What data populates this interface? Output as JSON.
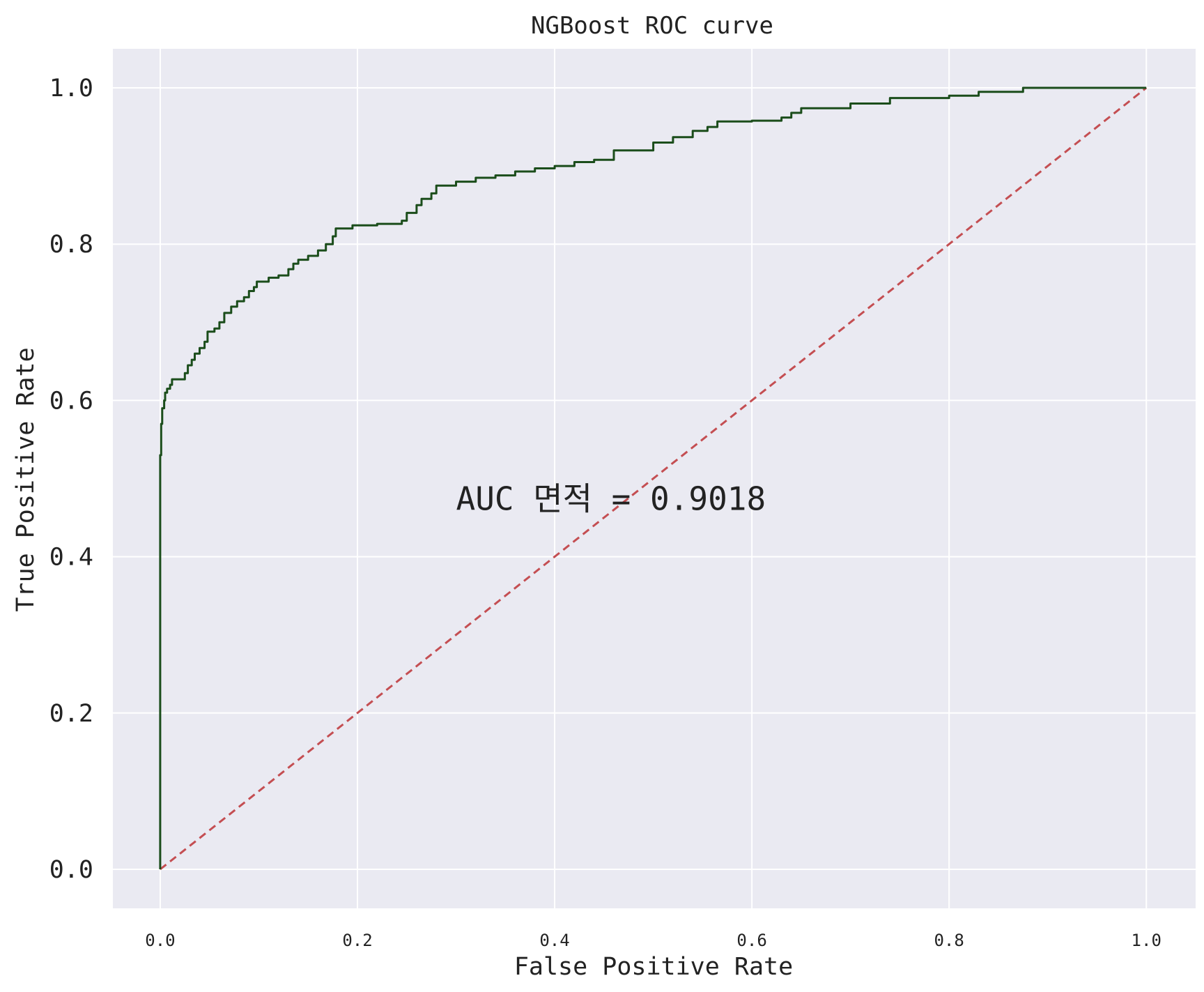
{
  "chart_data": {
    "type": "line",
    "title": "NGBoost ROC curve",
    "xlabel": "False Positive Rate",
    "ylabel": "True Positive Rate",
    "xlim": [
      -0.048,
      1.05
    ],
    "ylim": [
      -0.05,
      1.05
    ],
    "xticks": [
      0.0,
      0.2,
      0.4,
      0.6,
      0.8,
      1.0
    ],
    "xtick_labels": [
      "0.0",
      "0.2",
      "0.4",
      "0.6",
      "0.8",
      "1.0"
    ],
    "yticks": [
      0.0,
      0.2,
      0.4,
      0.6,
      0.8,
      1.0
    ],
    "ytick_labels": [
      "0.0",
      "0.2",
      "0.4",
      "0.6",
      "0.8",
      "1.0"
    ],
    "grid": true,
    "background": "#EAEAF2",
    "annotation": {
      "text": "AUC 면적 = 0.9018",
      "x": 0.3,
      "y": 0.46
    },
    "series": [
      {
        "style": "solid",
        "color": "#1B4D1B",
        "points": [
          [
            0.0,
            0.0
          ],
          [
            0.0,
            0.53
          ],
          [
            0.001,
            0.57
          ],
          [
            0.002,
            0.59
          ],
          [
            0.004,
            0.6
          ],
          [
            0.005,
            0.61
          ],
          [
            0.007,
            0.615
          ],
          [
            0.01,
            0.62
          ],
          [
            0.012,
            0.627
          ],
          [
            0.02,
            0.627
          ],
          [
            0.025,
            0.635
          ],
          [
            0.028,
            0.645
          ],
          [
            0.032,
            0.652
          ],
          [
            0.035,
            0.66
          ],
          [
            0.04,
            0.667
          ],
          [
            0.045,
            0.675
          ],
          [
            0.048,
            0.688
          ],
          [
            0.055,
            0.692
          ],
          [
            0.06,
            0.7
          ],
          [
            0.065,
            0.712
          ],
          [
            0.072,
            0.72
          ],
          [
            0.078,
            0.727
          ],
          [
            0.085,
            0.732
          ],
          [
            0.09,
            0.74
          ],
          [
            0.095,
            0.745
          ],
          [
            0.098,
            0.752
          ],
          [
            0.11,
            0.757
          ],
          [
            0.12,
            0.76
          ],
          [
            0.13,
            0.768
          ],
          [
            0.135,
            0.775
          ],
          [
            0.14,
            0.78
          ],
          [
            0.15,
            0.785
          ],
          [
            0.16,
            0.792
          ],
          [
            0.168,
            0.8
          ],
          [
            0.175,
            0.81
          ],
          [
            0.178,
            0.82
          ],
          [
            0.195,
            0.824
          ],
          [
            0.22,
            0.826
          ],
          [
            0.245,
            0.83
          ],
          [
            0.25,
            0.84
          ],
          [
            0.26,
            0.85
          ],
          [
            0.265,
            0.858
          ],
          [
            0.275,
            0.865
          ],
          [
            0.28,
            0.875
          ],
          [
            0.3,
            0.88
          ],
          [
            0.32,
            0.885
          ],
          [
            0.34,
            0.888
          ],
          [
            0.36,
            0.893
          ],
          [
            0.38,
            0.897
          ],
          [
            0.4,
            0.9
          ],
          [
            0.42,
            0.905
          ],
          [
            0.44,
            0.908
          ],
          [
            0.46,
            0.92
          ],
          [
            0.5,
            0.93
          ],
          [
            0.52,
            0.937
          ],
          [
            0.54,
            0.945
          ],
          [
            0.555,
            0.95
          ],
          [
            0.565,
            0.957
          ],
          [
            0.6,
            0.958
          ],
          [
            0.63,
            0.962
          ],
          [
            0.64,
            0.968
          ],
          [
            0.65,
            0.974
          ],
          [
            0.7,
            0.98
          ],
          [
            0.74,
            0.987
          ],
          [
            0.8,
            0.99
          ],
          [
            0.83,
            0.995
          ],
          [
            0.875,
            1.0
          ],
          [
            1.0,
            1.0
          ]
        ]
      },
      {
        "style": "dashed",
        "color": "#C44E52",
        "points": [
          [
            0.0,
            0.0
          ],
          [
            1.0,
            1.0
          ]
        ]
      }
    ]
  }
}
